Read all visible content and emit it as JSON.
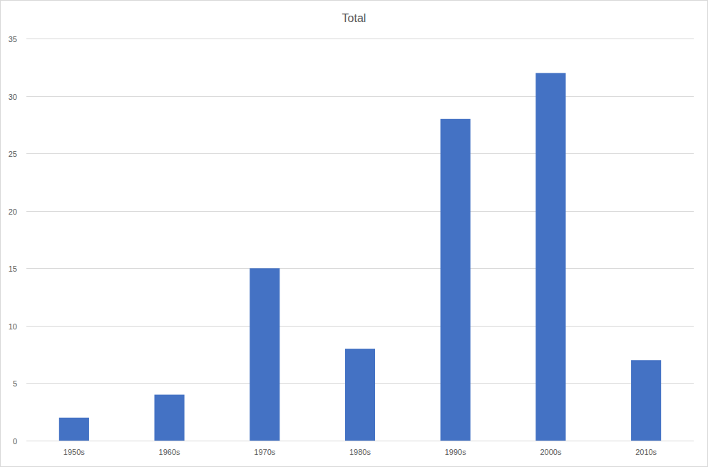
{
  "chart_data": {
    "type": "bar",
    "title": "Total",
    "categories": [
      "1950s",
      "1960s",
      "1970s",
      "1980s",
      "1990s",
      "2000s",
      "2010s"
    ],
    "values": [
      2,
      4,
      15,
      8,
      28,
      32,
      7
    ],
    "color": "#4472c4",
    "ylim": [
      0,
      35
    ],
    "yticks": [
      0,
      5,
      10,
      15,
      20,
      25,
      30,
      35
    ],
    "grid": true
  }
}
